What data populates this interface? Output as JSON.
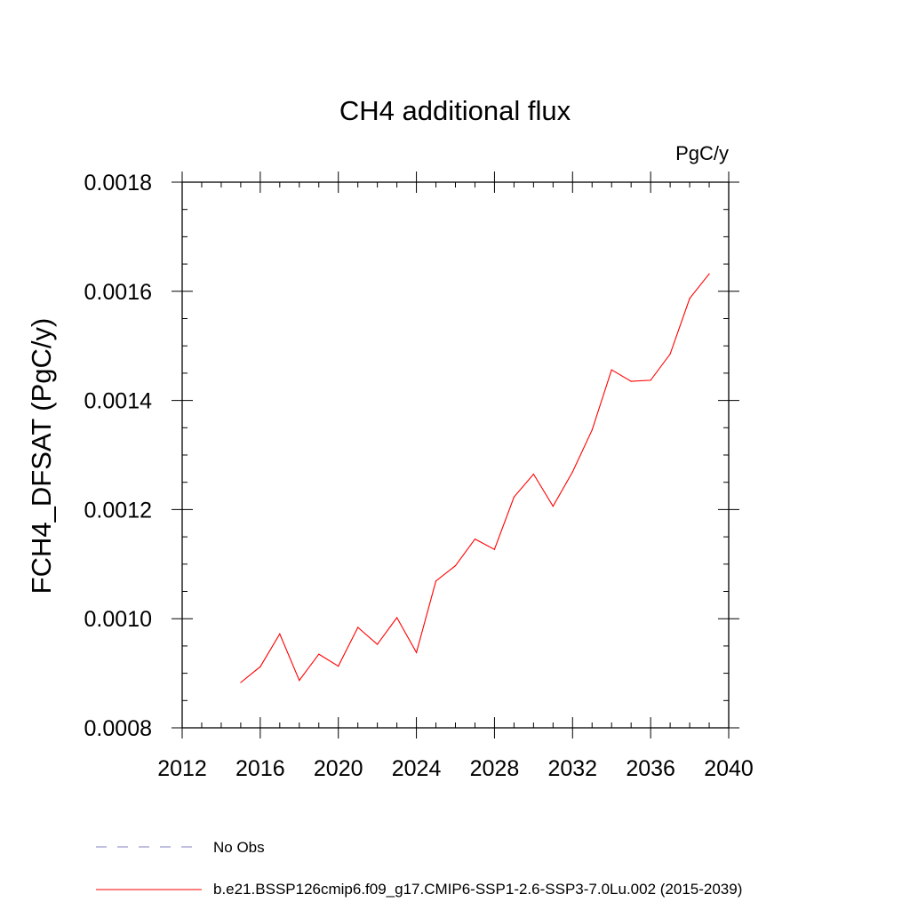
{
  "chart_data": {
    "type": "line",
    "title": "CH4 additional flux",
    "units": "PgC/y",
    "ylabel": "FCH4_DFSAT  (PgC/y)",
    "xlabel": "",
    "xlim": [
      2012,
      2040
    ],
    "ylim": [
      0.0008,
      0.0018
    ],
    "xticks": [
      2012,
      2016,
      2020,
      2024,
      2028,
      2032,
      2036,
      2040
    ],
    "xtick_labels": [
      "2012",
      "2016",
      "2020",
      "2024",
      "2028",
      "2032",
      "2036",
      "2040"
    ],
    "yticks": [
      0.0008,
      0.001,
      0.0012,
      0.0014,
      0.0016,
      0.0018
    ],
    "ytick_labels": [
      "0.0008",
      "0.0010",
      "0.0012",
      "0.0014",
      "0.0016",
      "0.0018"
    ],
    "grid": false,
    "legend_position": "bottom",
    "series": [
      {
        "name": "b.e21.BSSP126cmip6.f09_g17.CMIP6-SSP1-2.6-SSP3-7.0Lu.002 (2015-2039)",
        "color": "#ff0000",
        "style": "solid",
        "x": [
          2015,
          2016,
          2017,
          2018,
          2019,
          2020,
          2021,
          2022,
          2023,
          2024,
          2025,
          2026,
          2027,
          2028,
          2029,
          2030,
          2031,
          2032,
          2033,
          2034,
          2035,
          2036,
          2037,
          2038,
          2039
        ],
        "y": [
          0.000883,
          0.000912,
          0.000972,
          0.000887,
          0.000935,
          0.000913,
          0.000984,
          0.000953,
          0.001002,
          0.000938,
          0.001069,
          0.001097,
          0.001146,
          0.001127,
          0.001223,
          0.001265,
          0.001206,
          0.001269,
          0.001346,
          0.001456,
          0.001435,
          0.001437,
          0.001485,
          0.001587,
          0.001632
        ]
      }
    ],
    "legend": [
      {
        "label": "No Obs",
        "color": "#8080c0",
        "style": "dashed"
      },
      {
        "label": "b.e21.BSSP126cmip6.f09_g17.CMIP6-SSP1-2.6-SSP3-7.0Lu.002 (2015-2039)",
        "color": "#ff0000",
        "style": "solid"
      }
    ]
  }
}
